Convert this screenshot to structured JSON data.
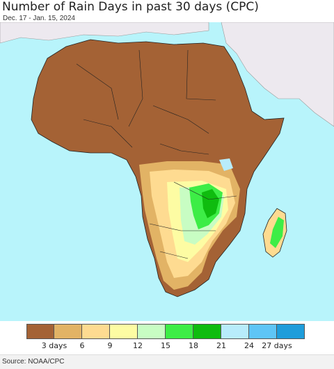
{
  "header": {
    "title": "Number of Rain Days in past 30 days (CPC)",
    "date_range": "Dec. 17 - Jan. 15, 2024"
  },
  "map": {
    "region": "Africa",
    "ocean_color": "#b8f4fb",
    "outside_land_color": "#ede9ef",
    "dry_color": "#a46235"
  },
  "legend": {
    "colors": [
      "#a46235",
      "#e2b365",
      "#fedb91",
      "#fdfca3",
      "#c8fdc3",
      "#3ded46",
      "#0fbc0f",
      "#b8ecfb",
      "#5ec5f6",
      "#1e9ddb"
    ],
    "tick_labels": [
      {
        "label": "3 days",
        "pos": 1
      },
      {
        "label": "6",
        "pos": 2
      },
      {
        "label": "9",
        "pos": 3
      },
      {
        "label": "12",
        "pos": 4
      },
      {
        "label": "15",
        "pos": 5
      },
      {
        "label": "18",
        "pos": 6
      },
      {
        "label": "21",
        "pos": 7
      },
      {
        "label": "24",
        "pos": 8
      },
      {
        "label": "27 days",
        "pos": 9
      }
    ]
  },
  "footer": {
    "source": "Source: NOAA/CPC"
  }
}
